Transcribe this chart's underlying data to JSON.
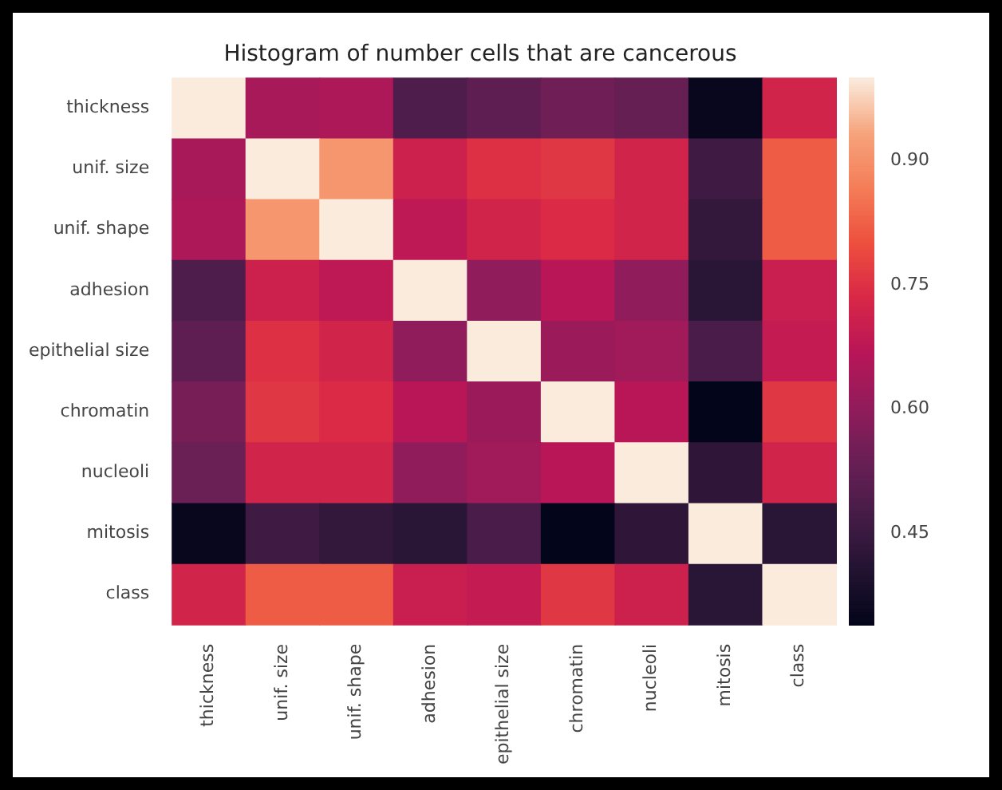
{
  "chart_data": {
    "type": "heatmap",
    "title": "Histogram of number cells that are cancerous",
    "categories": [
      "thickness",
      "unif. size",
      "unif. shape",
      "adhesion",
      "epithelial size",
      "chromatin",
      "nucleoli",
      "mitosis",
      "class"
    ],
    "y_categories": [
      "thickness",
      "unif. size",
      "unif. shape",
      "adhesion",
      "epithelial size",
      "chromatin",
      "nucleoli",
      "mitosis",
      "class"
    ],
    "cells": [
      [
        1,
        0.64,
        0.65,
        0.49,
        0.52,
        0.55,
        0.53,
        0.35,
        0.72
      ],
      [
        0.64,
        1,
        0.91,
        0.71,
        0.75,
        0.76,
        0.72,
        0.46,
        0.82
      ],
      [
        0.65,
        0.91,
        1,
        0.68,
        0.72,
        0.74,
        0.72,
        0.44,
        0.82
      ],
      [
        0.49,
        0.71,
        0.68,
        1,
        0.6,
        0.67,
        0.6,
        0.42,
        0.7
      ],
      [
        0.52,
        0.75,
        0.72,
        0.6,
        1,
        0.62,
        0.63,
        0.48,
        0.69
      ],
      [
        0.56,
        0.76,
        0.74,
        0.67,
        0.62,
        1,
        0.67,
        0.34,
        0.76
      ],
      [
        0.54,
        0.72,
        0.72,
        0.6,
        0.63,
        0.67,
        1,
        0.43,
        0.72
      ],
      [
        0.35,
        0.46,
        0.44,
        0.42,
        0.48,
        0.34,
        0.43,
        1,
        0.42
      ],
      [
        0.72,
        0.82,
        0.82,
        0.7,
        0.69,
        0.76,
        0.71,
        0.42,
        1
      ]
    ],
    "clim": [
      0.34,
      1
    ],
    "cticks": [
      0.45,
      {
        "value": 0.6,
        "label": "0.60"
      },
      0.75,
      {
        "value": 0.9,
        "label": "0.90"
      }
    ]
  }
}
